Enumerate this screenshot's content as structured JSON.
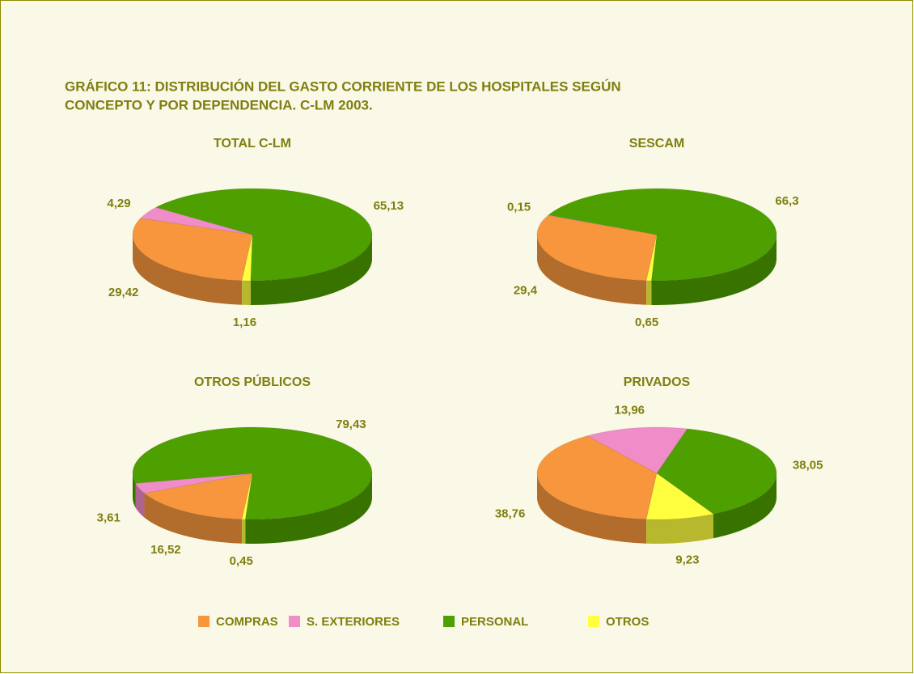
{
  "title": [
    "GRÁFICO 11: DISTRIBUCIÓN DEL GASTO CORRIENTE DE LOS HOSPITALES SEGÚN",
    "CONCEPTO Y POR DEPENDENCIA. C-LM 2003."
  ],
  "legend": {
    "categories": [
      "COMPRAS",
      "S. EXTERIORES",
      "PERSONAL",
      "OTROS"
    ],
    "colors": [
      "#f7963c",
      "#f08cc8",
      "#4ea000",
      "#ffff40"
    ]
  },
  "chart_data": [
    {
      "type": "pie",
      "title": "TOTAL C-LM",
      "values": [
        29.42,
        4.29,
        65.13,
        1.16
      ],
      "value_labels": [
        "29,42",
        "4,29",
        "65,13",
        "1,16"
      ]
    },
    {
      "type": "pie",
      "title": "SESCAM",
      "values": [
        29.4,
        0.15,
        66.3,
        0.65
      ],
      "value_labels": [
        "29,4",
        "0,15",
        "66,3",
        "0,65"
      ]
    },
    {
      "type": "pie",
      "title": "OTROS PÚBLICOS",
      "values": [
        16.52,
        3.61,
        79.43,
        0.45
      ],
      "value_labels": [
        "16,52",
        "3,61",
        "79,43",
        "0,45"
      ]
    },
    {
      "type": "pie",
      "title": "PRIVADOS",
      "values": [
        38.76,
        13.96,
        38.05,
        9.23
      ],
      "value_labels": [
        "38,76",
        "13,96",
        "38,05",
        "9,23"
      ]
    }
  ]
}
